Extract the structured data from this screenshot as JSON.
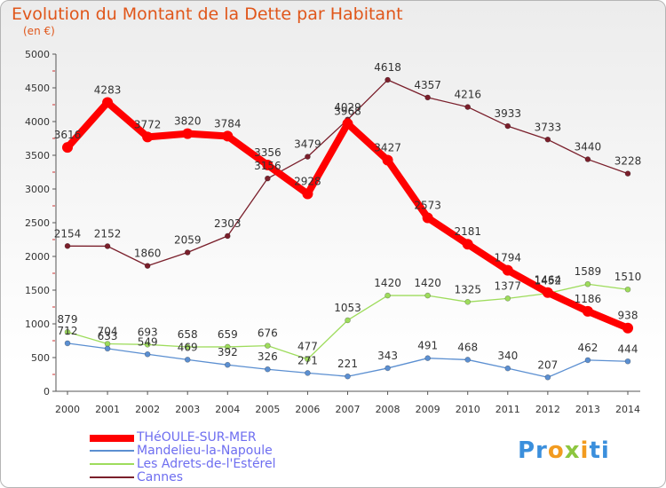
{
  "title": "Evolution du Montant de la Dette par Habitant",
  "subtitle": "(en €)",
  "logo": {
    "text": "Proxiti"
  },
  "chart_data": {
    "type": "line",
    "x": [
      "2000",
      "2001",
      "2002",
      "2003",
      "2004",
      "2005",
      "2006",
      "2007",
      "2008",
      "2009",
      "2010",
      "2011",
      "2012",
      "2013",
      "2014"
    ],
    "ylim": [
      0,
      5000
    ],
    "yticks": [
      0,
      500,
      1000,
      1500,
      2000,
      2500,
      3000,
      3500,
      4000,
      4500,
      5000
    ],
    "grid": false,
    "legend_position": "bottom-left",
    "series": [
      {
        "name": "Cannes",
        "color": "#7a1f2b",
        "values": [
          2154,
          2152,
          1860,
          2059,
          2303,
          3156,
          3479,
          4029,
          4618,
          4357,
          4216,
          3933,
          3733,
          3440,
          3228
        ]
      },
      {
        "name": "Les Adrets-de-l'Estérel",
        "color": "#9edc5c",
        "values": [
          879,
          704,
          693,
          658,
          659,
          676,
          477,
          1053,
          1420,
          1420,
          1325,
          1377,
          1452,
          1589,
          1510
        ]
      },
      {
        "name": "Mandelieu-la-Napoule",
        "color": "#5b8fd1",
        "values": [
          712,
          633,
          549,
          469,
          392,
          326,
          271,
          221,
          343,
          491,
          468,
          340,
          207,
          462,
          444
        ]
      },
      {
        "name": "THéOULE-SUR-MER",
        "color": "#ff0000",
        "values": [
          3616,
          4283,
          3772,
          3820,
          3784,
          3356,
          2928,
          3968,
          3427,
          2573,
          2181,
          1794,
          1464,
          1186,
          938
        ]
      }
    ]
  },
  "legend": [
    {
      "label": "THéOULE-SUR-MER",
      "color": "#ff0000"
    },
    {
      "label": "Mandelieu-la-Napoule",
      "color": "#5b8fd1"
    },
    {
      "label": "Les Adrets-de-l'Estérel",
      "color": "#9edc5c"
    },
    {
      "label": "Cannes",
      "color": "#7a1f2b"
    }
  ]
}
